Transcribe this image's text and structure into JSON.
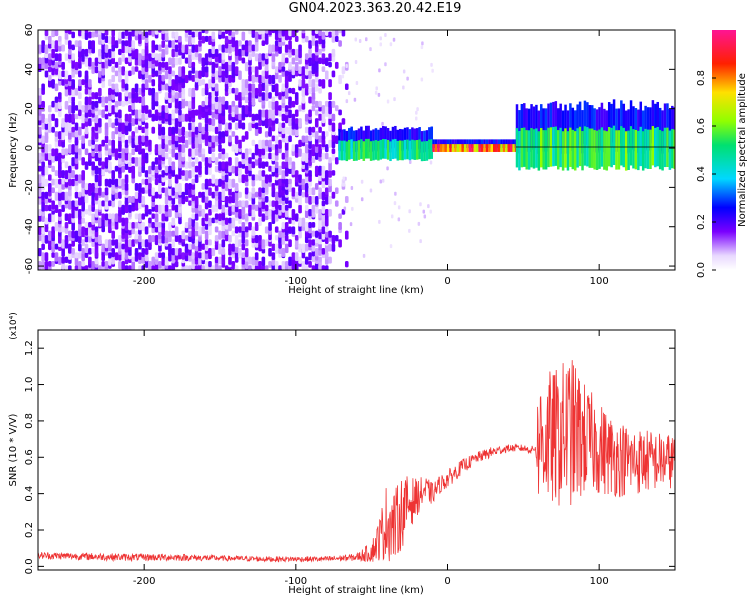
{
  "title": "GN04.2023.363.20.42.E19",
  "colors": {
    "waterfall_purple": "#7a00ff",
    "snr_line": "#ee3333",
    "colorbar": [
      "#ffffff",
      "#e8d8ff",
      "#7a00ff",
      "#0000ff",
      "#00d8ff",
      "#00e070",
      "#90ff00",
      "#ffe000",
      "#ff2000",
      "#ff1493"
    ]
  },
  "chart_data": [
    {
      "type": "heatmap",
      "xlabel": "Height of straight line (km)",
      "ylabel": "Frequency (Hz)",
      "xlim": [
        -270,
        150
      ],
      "ylim": [
        -62,
        60
      ],
      "xticks": [
        -200,
        -100,
        0,
        100
      ],
      "xtick_labels": [
        "-200",
        "-100",
        "0",
        "100"
      ],
      "yticks": [
        60,
        40,
        20,
        0,
        -20,
        -40,
        -60
      ],
      "ytick_labels": [
        "60",
        "40",
        "20",
        "0",
        "-20",
        "-40",
        "-60"
      ],
      "colorbar": {
        "label": "Normalized spectral amplitude",
        "ticks": [
          0.0,
          0.2,
          0.4,
          0.6,
          0.8
        ],
        "tick_labels": [
          "0.0",
          "0.2",
          "0.4",
          "0.6",
          "0.8"
        ],
        "range": [
          0,
          1
        ]
      },
      "regions": [
        {
          "x": [
            -270,
            -72
          ],
          "freq": [
            -62,
            60
          ],
          "amplitude": 0.12
        },
        {
          "x": [
            -72,
            -10
          ],
          "freq": [
            -6,
            4
          ],
          "amplitude": 0.55
        },
        {
          "x": [
            -10,
            45
          ],
          "freq": [
            -2,
            2
          ],
          "amplitude": 0.95
        },
        {
          "x": [
            45,
            150
          ],
          "freq": [
            -10,
            10
          ],
          "amplitude": 0.6
        }
      ],
      "grid": false
    },
    {
      "type": "line",
      "xlabel": "Height of straight line (km)",
      "ylabel": "SNR (10 * V/V)",
      "y_multiplier": "(x10⁴)",
      "xlim": [
        -270,
        150
      ],
      "ylim": [
        -0.02,
        1.3
      ],
      "xticks": [
        -200,
        -100,
        0,
        100
      ],
      "xtick_labels": [
        "-200",
        "-100",
        "0",
        "100"
      ],
      "yticks": [
        0.0,
        0.2,
        0.4,
        0.6,
        0.8,
        1.0,
        1.2
      ],
      "ytick_labels": [
        "0.0",
        "0.2",
        "0.4",
        "0.6",
        "0.8",
        "1.0",
        "1.2"
      ],
      "series": [
        {
          "x": [
            -270,
            -240,
            -210,
            -180,
            -150,
            -120,
            -100,
            -80,
            -60,
            -50,
            -45,
            -40,
            -35,
            -30,
            -25,
            -20,
            -15,
            -10,
            -5,
            0,
            10,
            20,
            30,
            40,
            50,
            55,
            58,
            60,
            65,
            70,
            75,
            80,
            85,
            90,
            95,
            100,
            110,
            120,
            130,
            140,
            150
          ],
          "y": [
            0.06,
            0.055,
            0.05,
            0.05,
            0.045,
            0.04,
            0.04,
            0.04,
            0.05,
            0.08,
            0.15,
            0.25,
            0.22,
            0.3,
            0.35,
            0.38,
            0.42,
            0.4,
            0.45,
            0.48,
            0.55,
            0.6,
            0.63,
            0.65,
            0.65,
            0.64,
            0.65,
            0.7,
            0.7,
            0.7,
            0.72,
            0.75,
            0.72,
            0.7,
            0.68,
            0.65,
            0.6,
            0.58,
            0.58,
            0.58,
            0.58
          ],
          "spread": [
            0.02,
            0.02,
            0.02,
            0.02,
            0.015,
            0.015,
            0.015,
            0.015,
            0.02,
            0.06,
            0.12,
            0.22,
            0.2,
            0.2,
            0.15,
            0.1,
            0.08,
            0.06,
            0.05,
            0.05,
            0.04,
            0.03,
            0.03,
            0.02,
            0.02,
            0.02,
            0.02,
            0.35,
            0.38,
            0.38,
            0.4,
            0.42,
            0.4,
            0.32,
            0.28,
            0.26,
            0.22,
            0.2,
            0.18,
            0.16,
            0.15
          ]
        }
      ],
      "grid": false
    }
  ]
}
